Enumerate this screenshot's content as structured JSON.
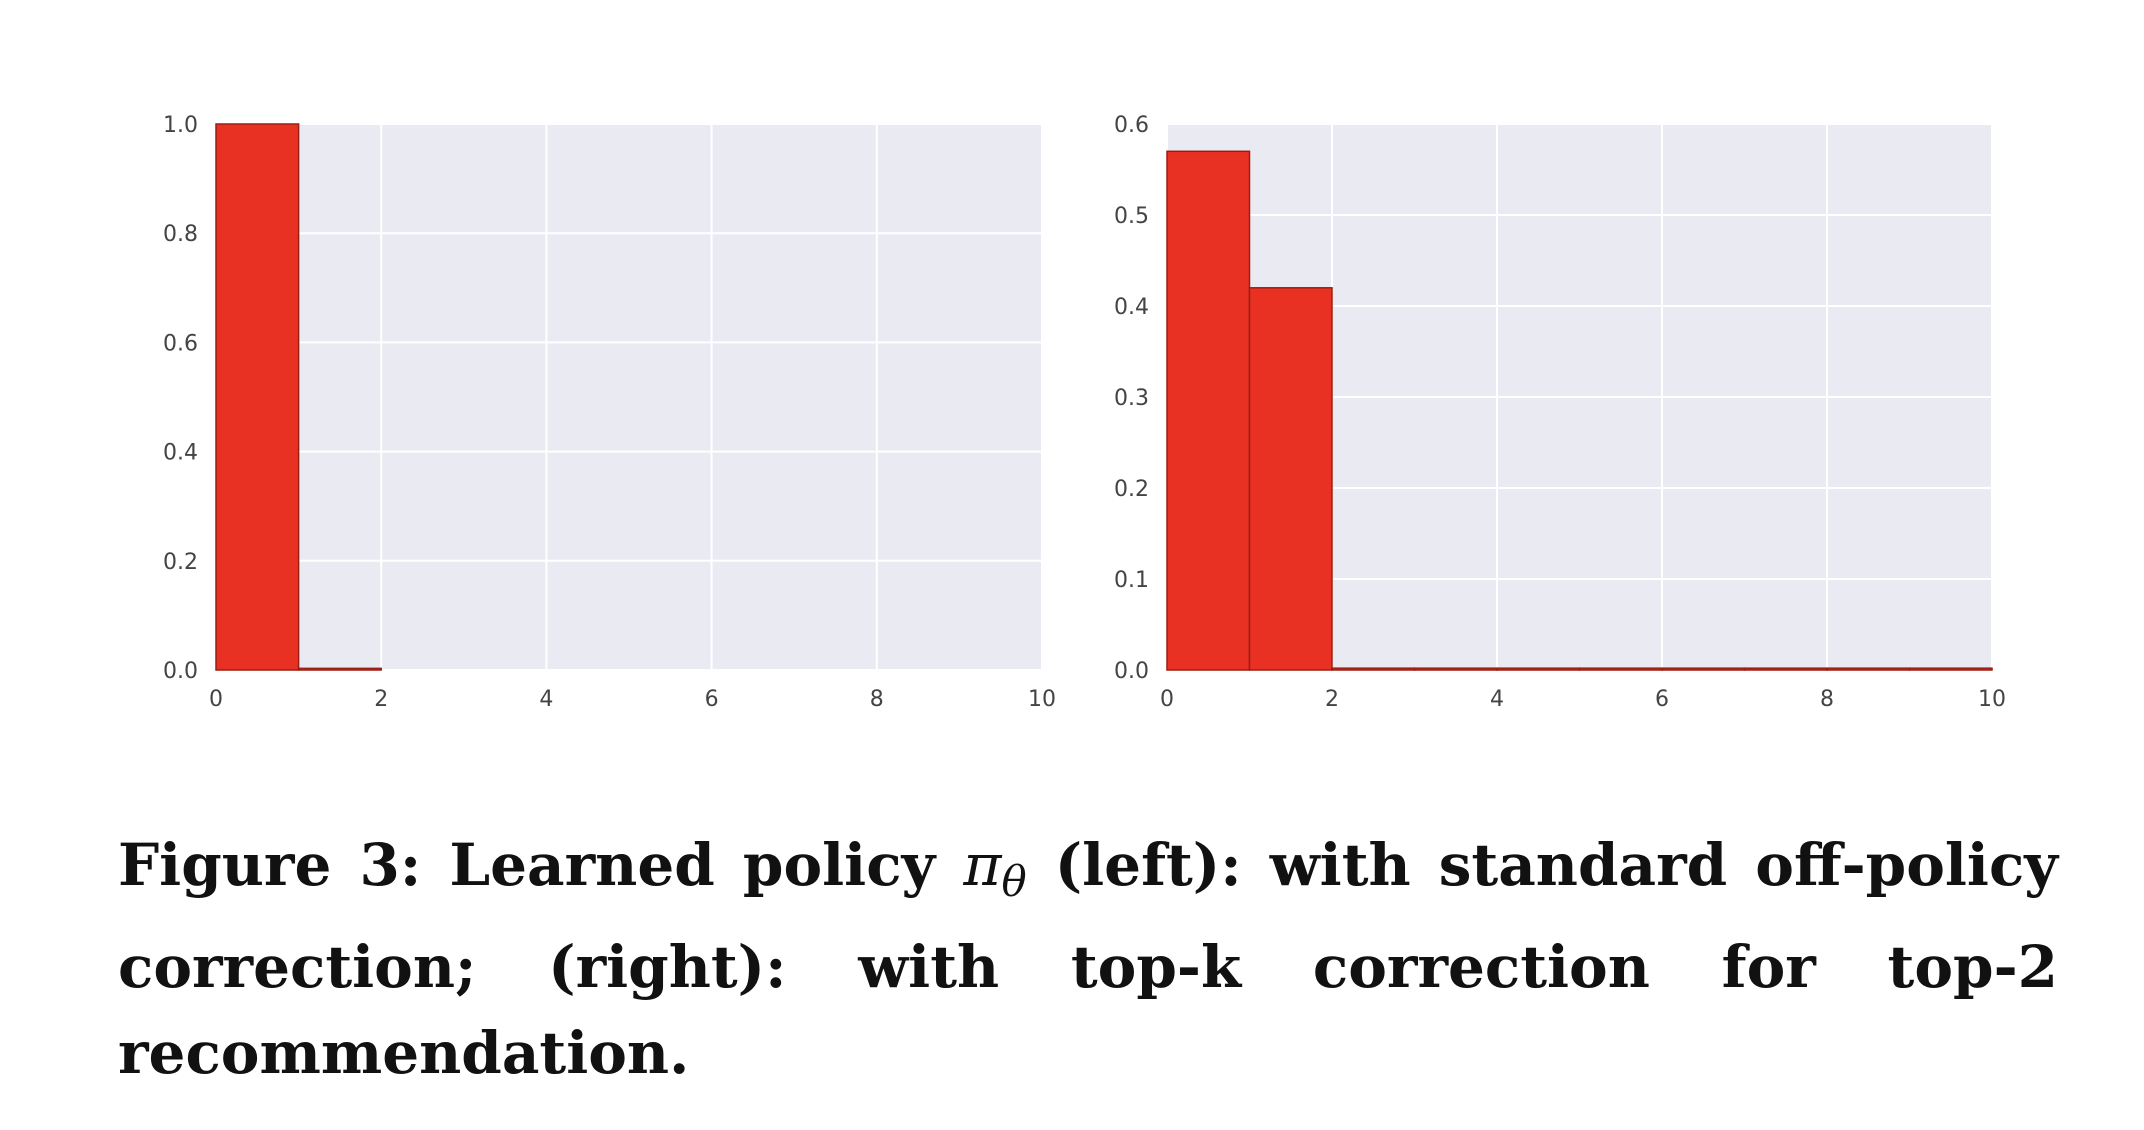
{
  "chart_data": [
    {
      "type": "bar",
      "panel": "left",
      "bin_edges": [
        0,
        1,
        2,
        3,
        4,
        5,
        6,
        7,
        8,
        9,
        10
      ],
      "values": [
        1.0,
        0.003,
        0,
        0,
        0,
        0,
        0,
        0,
        0,
        0
      ],
      "xlim": [
        0,
        10
      ],
      "ylim": [
        0,
        1.0
      ],
      "xticks": [
        "0",
        "2",
        "4",
        "6",
        "8",
        "10"
      ],
      "yticks": [
        "0.0",
        "0.2",
        "0.4",
        "0.6",
        "0.8",
        "1.0"
      ],
      "grid": true,
      "bar_color": "#e83123",
      "background": "#eaeaf2",
      "title": "",
      "xlabel": "",
      "ylabel": ""
    },
    {
      "type": "bar",
      "panel": "right",
      "bin_edges": [
        0,
        1,
        2,
        3,
        4,
        5,
        6,
        7,
        8,
        9,
        10
      ],
      "values": [
        0.57,
        0.42,
        0.002,
        0.002,
        0.002,
        0.002,
        0.002,
        0.002,
        0.002,
        0.002
      ],
      "xlim": [
        0,
        10
      ],
      "ylim": [
        0,
        0.6
      ],
      "xticks": [
        "0",
        "2",
        "4",
        "6",
        "8",
        "10"
      ],
      "yticks": [
        "0.0",
        "0.1",
        "0.2",
        "0.3",
        "0.4",
        "0.5",
        "0.6"
      ],
      "grid": true,
      "bar_color": "#e83123",
      "background": "#eaeaf2",
      "title": "",
      "xlabel": "",
      "ylabel": ""
    }
  ],
  "caption": {
    "label": "Figure 3:",
    "text_before": "Learned policy",
    "symbol": "π",
    "subscript": "θ",
    "text_after": "(left): with standard off-policy correction; (right): with top-k correction for top-2 recommendation."
  }
}
